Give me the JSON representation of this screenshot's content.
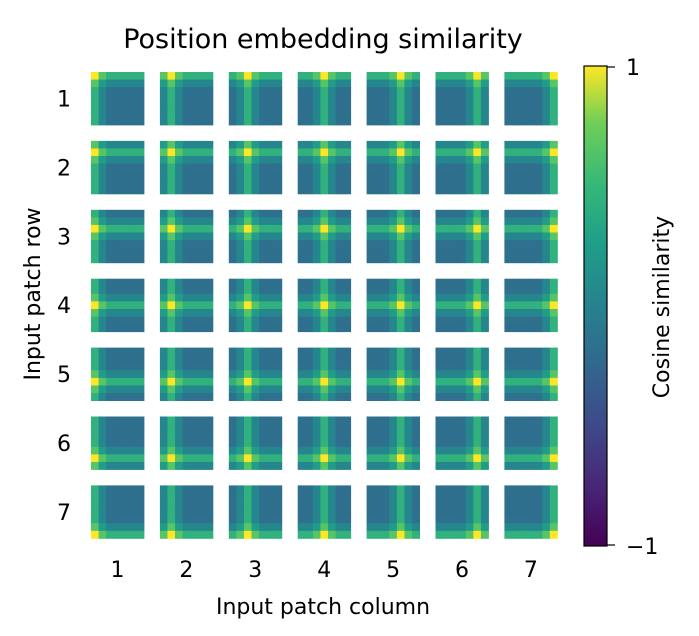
{
  "chart_data": {
    "type": "heatmap",
    "title": "Position embedding similarity",
    "xlabel": "Input patch column",
    "ylabel": "Input patch row",
    "rows": [
      "1",
      "2",
      "3",
      "4",
      "5",
      "6",
      "7"
    ],
    "columns": [
      "1",
      "2",
      "3",
      "4",
      "5",
      "6",
      "7"
    ],
    "grid": "7x7 small multiples, each a 7x7 cosine-similarity map",
    "colorbar": {
      "label": "Cosine similarity",
      "range": [
        -1,
        1
      ],
      "ticks": [
        "1",
        "−1"
      ],
      "colormap": "viridis"
    }
  }
}
